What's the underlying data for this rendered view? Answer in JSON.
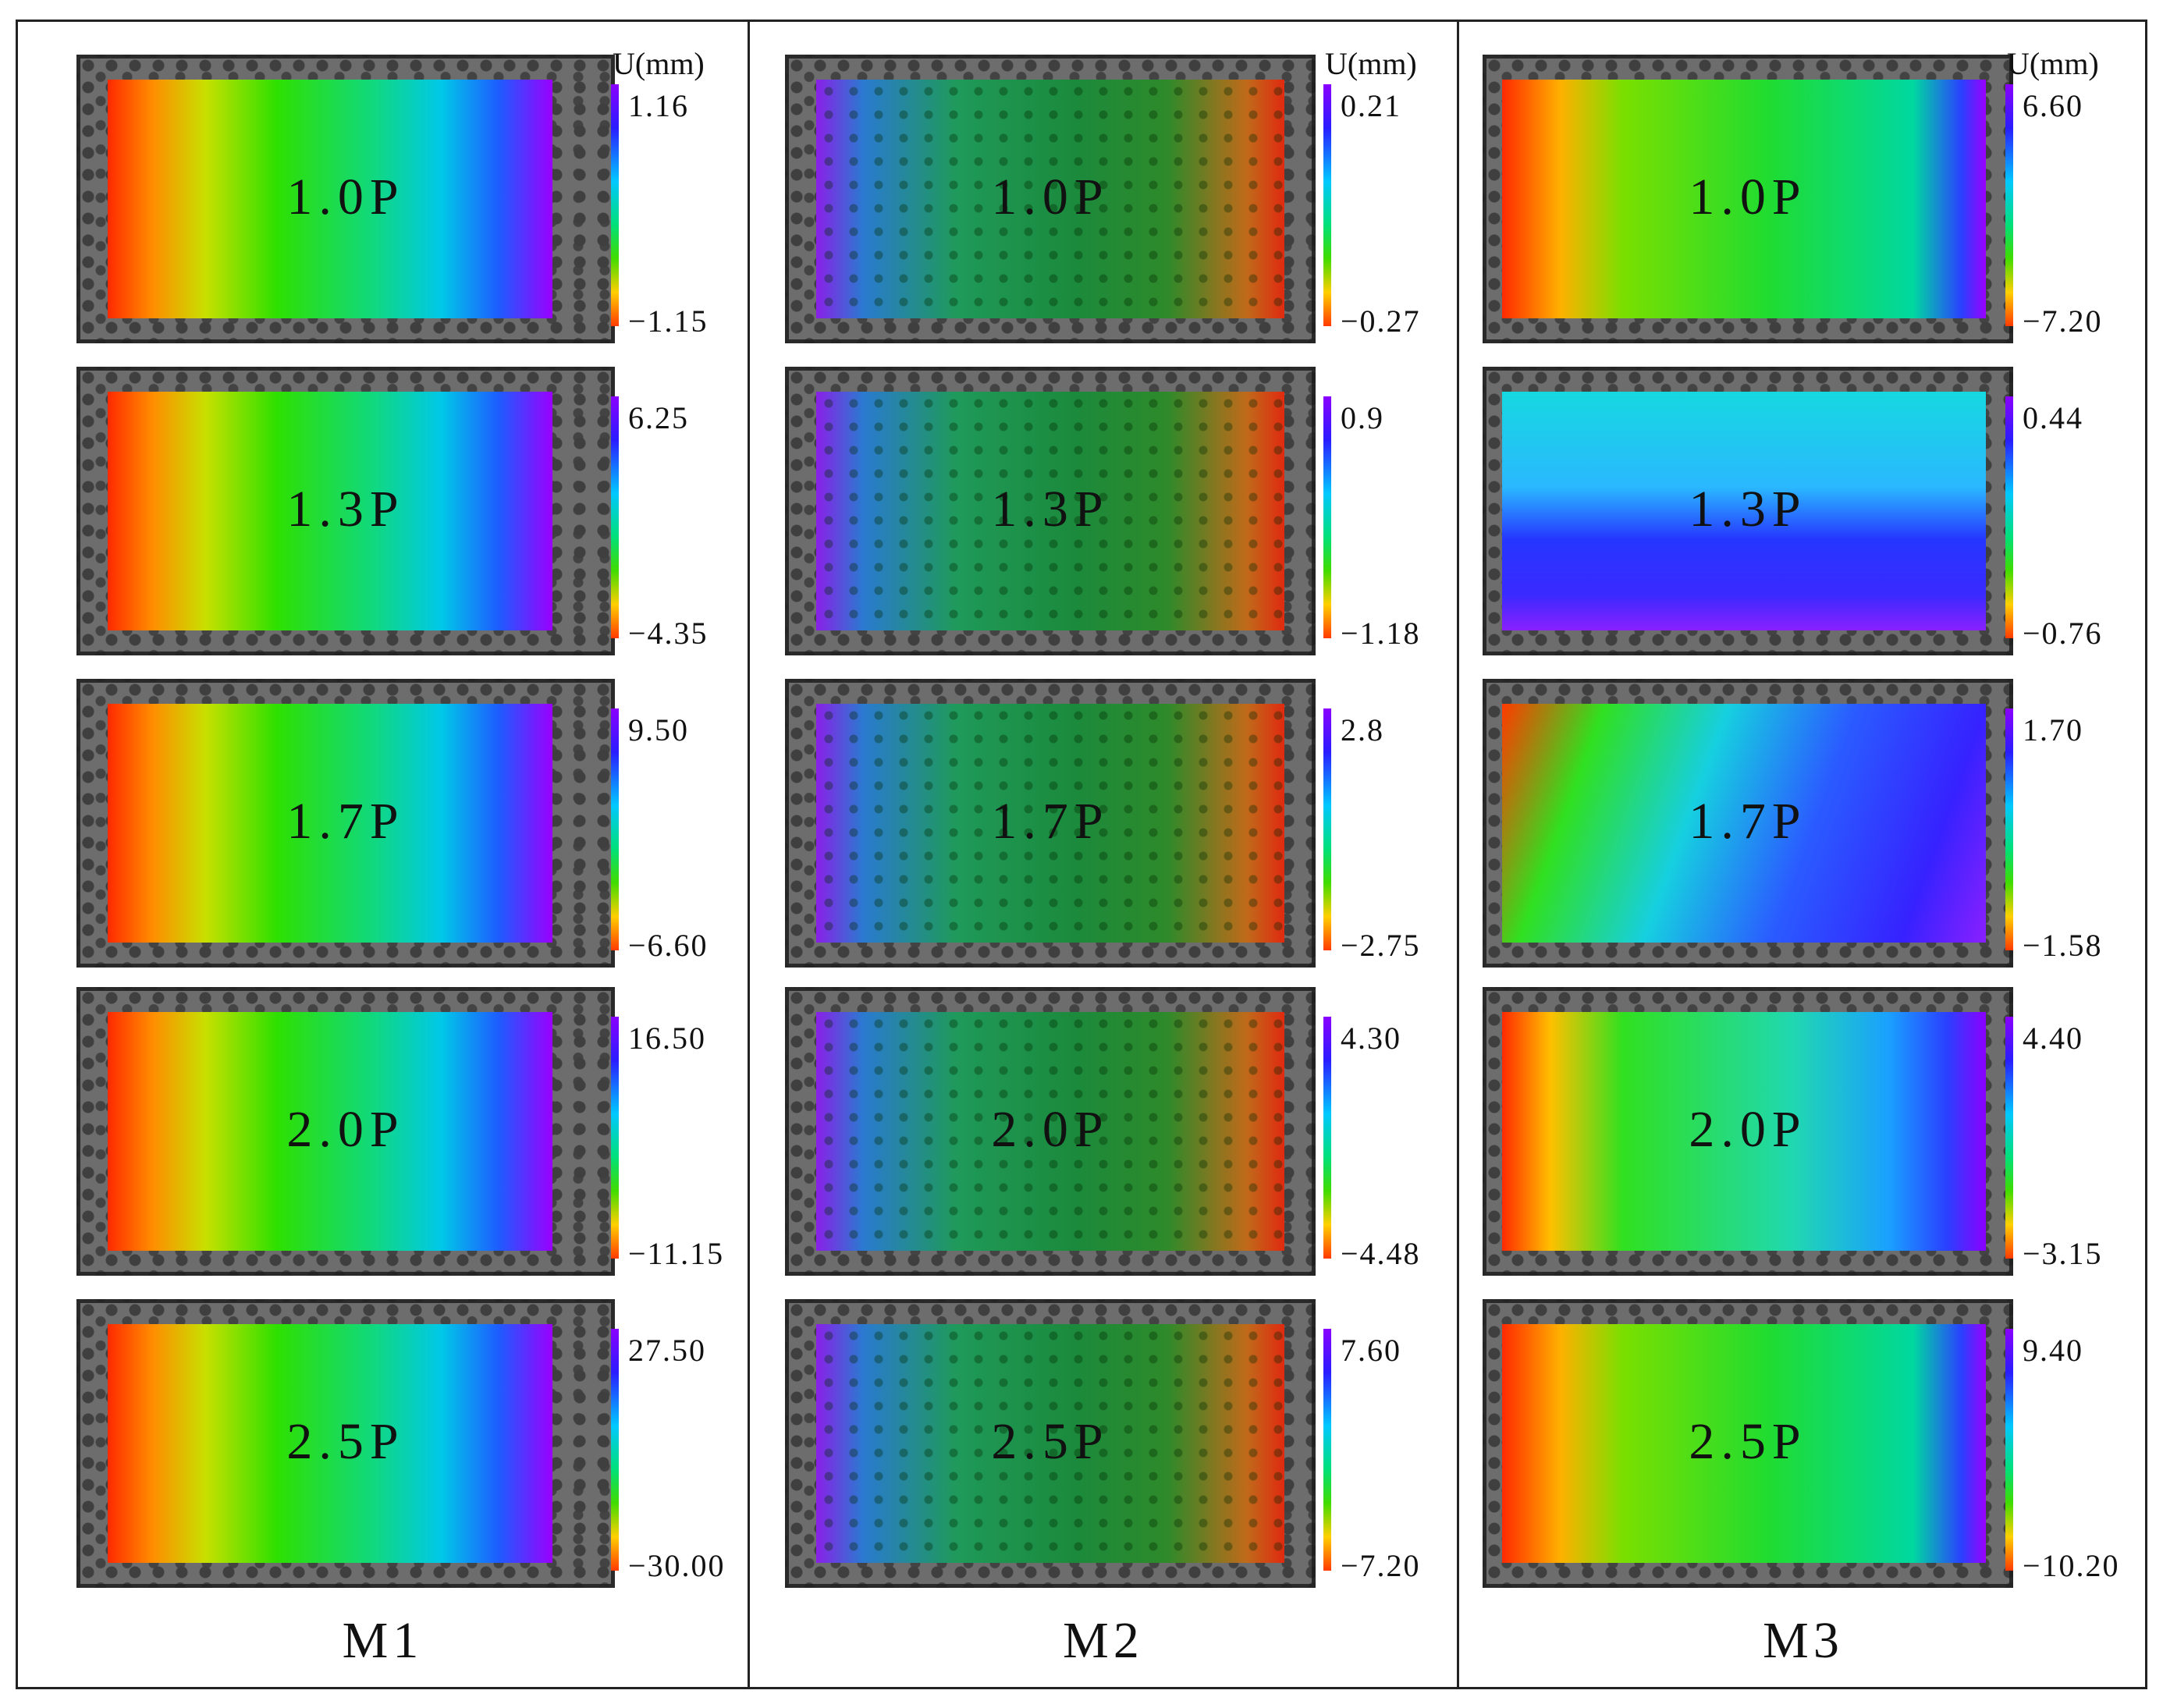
{
  "figure": {
    "unit_label": "U(mm)",
    "columns": [
      {
        "name": "M1",
        "panels": [
          {
            "load": "1.0P",
            "max": "1.16",
            "min": "−1.15"
          },
          {
            "load": "1.3P",
            "max": "6.25",
            "min": "−4.35"
          },
          {
            "load": "1.7P",
            "max": "9.50",
            "min": "−6.60"
          },
          {
            "load": "2.0P",
            "max": "16.50",
            "min": "−11.15"
          },
          {
            "load": "2.5P",
            "max": "27.50",
            "min": "−30.00"
          }
        ]
      },
      {
        "name": "M2",
        "panels": [
          {
            "load": "1.0P",
            "max": "0.21",
            "min": "−0.27"
          },
          {
            "load": "1.3P",
            "max": "0.9",
            "min": "−1.18"
          },
          {
            "load": "1.7P",
            "max": "2.8",
            "min": "−2.75"
          },
          {
            "load": "2.0P",
            "max": "4.30",
            "min": "−4.48"
          },
          {
            "load": "2.5P",
            "max": "7.60",
            "min": "−7.20"
          }
        ]
      },
      {
        "name": "M3",
        "panels": [
          {
            "load": "1.0P",
            "max": "6.60",
            "min": "−7.20"
          },
          {
            "load": "1.3P",
            "max": "0.44",
            "min": "−0.76"
          },
          {
            "load": "1.7P",
            "max": "1.70",
            "min": "−1.58"
          },
          {
            "load": "2.0P",
            "max": "4.40",
            "min": "−3.15"
          },
          {
            "load": "2.5P",
            "max": "9.40",
            "min": "−10.20"
          }
        ]
      }
    ],
    "colormap": [
      "#8a00ff",
      "#2a1cff",
      "#00c8ff",
      "#00e07a",
      "#3fdc00",
      "#ffd000",
      "#ff3a00"
    ]
  }
}
